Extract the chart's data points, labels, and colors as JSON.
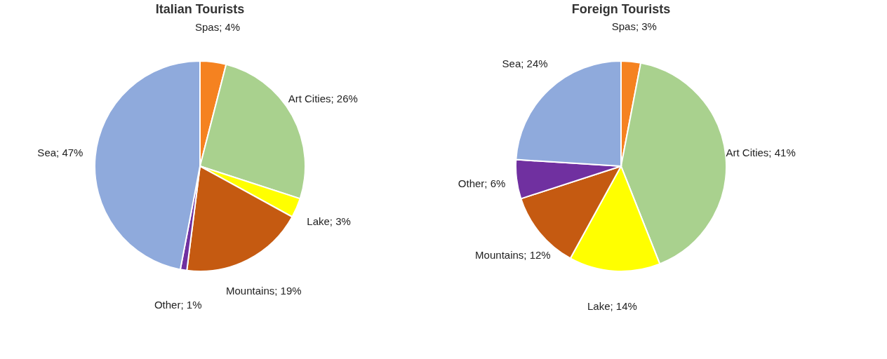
{
  "chart_data": [
    {
      "type": "pie",
      "title": "Italian Tourists",
      "categories": [
        "Spas",
        "Art Cities",
        "Lake",
        "Mountains",
        "Other",
        "Sea"
      ],
      "values": [
        4,
        26,
        3,
        19,
        1,
        47
      ],
      "value_labels": [
        "4%",
        "26%",
        "3%",
        "19%",
        "1%",
        "47%"
      ],
      "colors": [
        "#f58220",
        "#a9d18e",
        "#ffff00",
        "#c55a11",
        "#7030a0",
        "#8faadc"
      ],
      "legend": false
    },
    {
      "type": "pie",
      "title": "Foreign Tourists",
      "categories": [
        "Spas",
        "Art Cities",
        "Lake",
        "Mountains",
        "Other",
        "Sea"
      ],
      "values": [
        3,
        41,
        14,
        12,
        6,
        24
      ],
      "value_labels": [
        "3%",
        "41%",
        "14%",
        "12%",
        "6%",
        "24%"
      ],
      "colors": [
        "#f58220",
        "#a9d18e",
        "#ffff00",
        "#c55a11",
        "#7030a0",
        "#8faadc"
      ],
      "legend": false
    }
  ]
}
